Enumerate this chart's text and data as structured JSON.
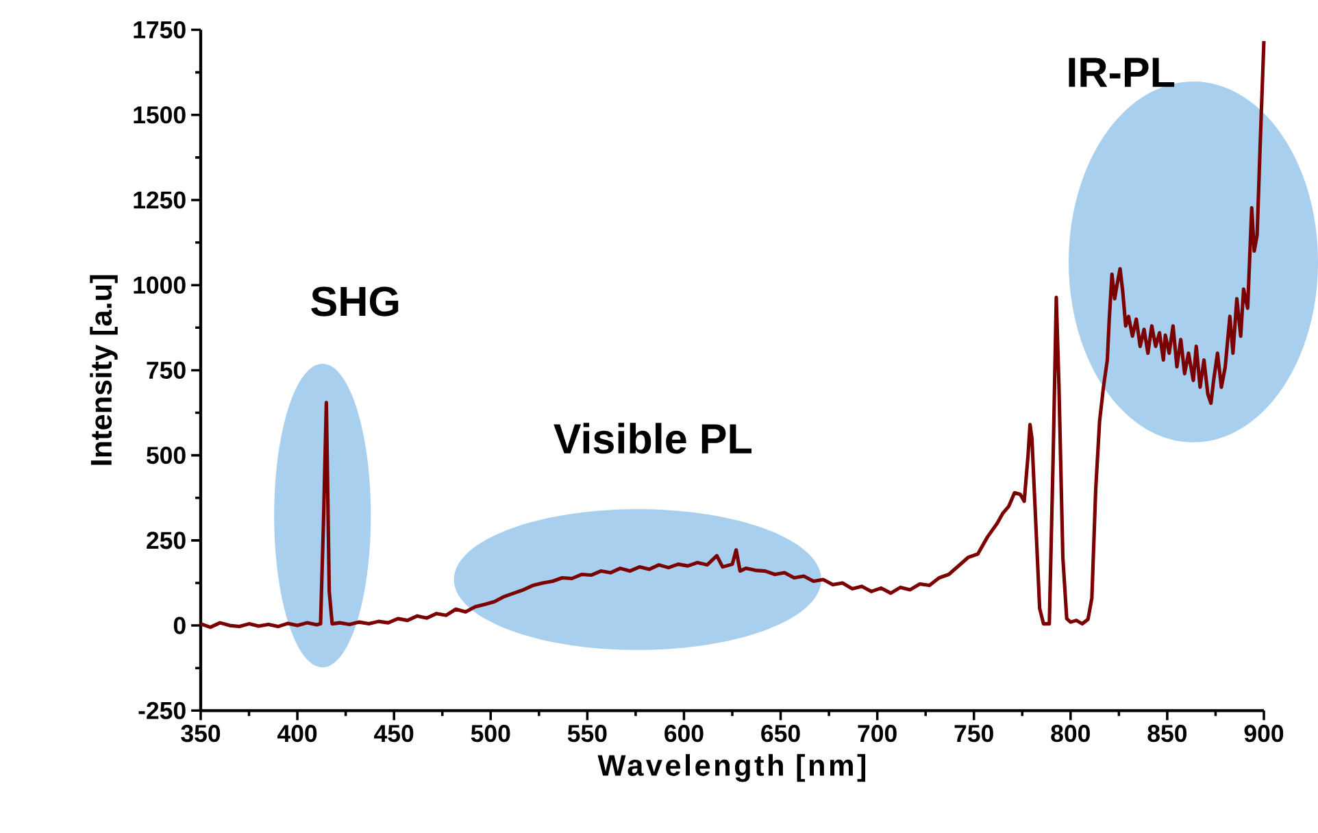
{
  "chart_data": {
    "type": "line",
    "xlabel": "Wavelength [nm]",
    "ylabel": "Intensity [a.u]",
    "xlim": [
      350,
      900
    ],
    "ylim": [
      -250,
      1750
    ],
    "xticks": [
      350,
      400,
      450,
      500,
      550,
      600,
      650,
      700,
      750,
      800,
      850,
      900
    ],
    "yticks": [
      -250,
      0,
      250,
      500,
      750,
      1000,
      1250,
      1500,
      1750
    ],
    "annotations": [
      "SHG",
      "Visible PL",
      "IR-PL"
    ],
    "series": [
      {
        "color": "#7b0000",
        "x": [
          350,
          355,
          360,
          365,
          370,
          375,
          380,
          385,
          390,
          395,
          400,
          405,
          410,
          412,
          413.5,
          415,
          416.5,
          418,
          422,
          427,
          432,
          437,
          442,
          447,
          452,
          457,
          462,
          467,
          472,
          477,
          482,
          487,
          492,
          497,
          502,
          507,
          512,
          517,
          522,
          527,
          532,
          537,
          542,
          547,
          552,
          557,
          562,
          567,
          572,
          577,
          582,
          587,
          592,
          597,
          602,
          607,
          612,
          617,
          620,
          625,
          627,
          629,
          632,
          637,
          642,
          647,
          652,
          657,
          662,
          667,
          672,
          677,
          682,
          687,
          692,
          697,
          702,
          707,
          712,
          717,
          722,
          727,
          732,
          737,
          742,
          747,
          752,
          757,
          762,
          765,
          768,
          771,
          774,
          776,
          778,
          779,
          780,
          782,
          784,
          786,
          789,
          791,
          792.6,
          794,
          796,
          798,
          800,
          803,
          806,
          809,
          811,
          813,
          815,
          817,
          819,
          820,
          821.4,
          822.8,
          824,
          825.6,
          827,
          828.5,
          830,
          832,
          834,
          836,
          838,
          840,
          842,
          844,
          846,
          848,
          849,
          851,
          853,
          855,
          857,
          859,
          861,
          863.5,
          865,
          867,
          869,
          871,
          872.6,
          874,
          876,
          878,
          880,
          882.4,
          884,
          886,
          888,
          889.5,
          891.6,
          893.7,
          895,
          896.5,
          898,
          900
        ],
        "values": [
          5,
          -5,
          8,
          0,
          -3,
          5,
          -2,
          3,
          -3,
          6,
          0,
          8,
          2,
          5,
          300,
          655,
          100,
          5,
          8,
          3,
          10,
          5,
          12,
          8,
          20,
          15,
          28,
          22,
          35,
          30,
          48,
          40,
          55,
          62,
          70,
          85,
          95,
          105,
          118,
          125,
          130,
          140,
          138,
          150,
          148,
          160,
          155,
          168,
          160,
          172,
          165,
          178,
          170,
          180,
          175,
          185,
          178,
          205,
          172,
          180,
          222,
          160,
          168,
          162,
          160,
          150,
          155,
          140,
          145,
          130,
          135,
          120,
          125,
          108,
          115,
          100,
          110,
          95,
          112,
          105,
          122,
          118,
          140,
          150,
          175,
          200,
          210,
          260,
          300,
          330,
          350,
          390,
          385,
          365,
          500,
          590,
          550,
          300,
          50,
          5,
          5,
          500,
          964,
          700,
          200,
          20,
          10,
          15,
          5,
          18,
          80,
          400,
          600,
          700,
          780,
          900,
          1032,
          960,
          1000,
          1048,
          980,
          880,
          908,
          850,
          900,
          820,
          870,
          800,
          880,
          820,
          860,
          780,
          853,
          800,
          880,
          760,
          840,
          740,
          800,
          720,
          820,
          700,
          780,
          680,
          653,
          720,
          800,
          700,
          760,
          908,
          800,
          960,
          850,
          988,
          932,
          1227,
          1100,
          1147,
          1400,
          1717
        ]
      }
    ]
  }
}
